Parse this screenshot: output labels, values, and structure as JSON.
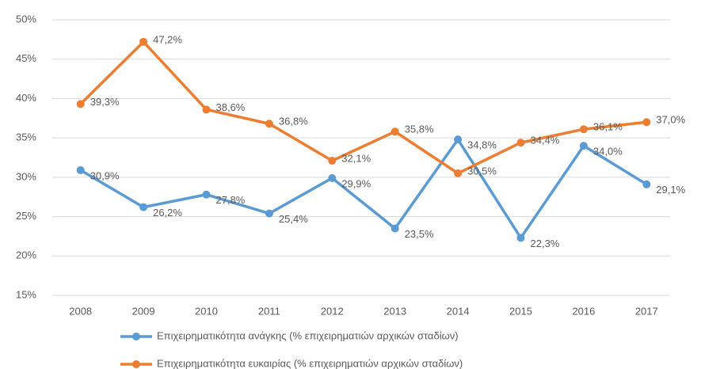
{
  "chart_data": {
    "type": "line",
    "categories": [
      "2008",
      "2009",
      "2010",
      "2011",
      "2012",
      "2013",
      "2014",
      "2015",
      "2016",
      "2017"
    ],
    "series": [
      {
        "name": "Επιχειρηματικότητα ανάγκης (% επιχειρηματιών αρχικών σταδίων)",
        "color": "#5b9bd5",
        "values": [
          30.9,
          26.2,
          27.8,
          25.4,
          29.9,
          23.5,
          34.8,
          22.3,
          34.0,
          29.1
        ],
        "value_labels": [
          "30,9%",
          "26,2%",
          "27,8%",
          "25,4%",
          "29,9%",
          "23,5%",
          "34,8%",
          "22,3%",
          "34,0%",
          "29,1%"
        ]
      },
      {
        "name": "Επιχειρηματικότητα ευκαιρίας (% επιχειρηματιών αρχικών σταδίων)",
        "color": "#ed7d31",
        "values": [
          39.3,
          47.2,
          38.6,
          36.8,
          32.1,
          35.8,
          30.5,
          34.4,
          36.1,
          37.0
        ],
        "value_labels": [
          "39,3%",
          "47,2%",
          "38,6%",
          "36,8%",
          "32,1%",
          "35,8%",
          "30,5%",
          "34,4%",
          "36,1%",
          "37,0%"
        ]
      }
    ],
    "ylim": [
      15,
      50
    ],
    "yticks": [
      {
        "value": 15,
        "label": "15%"
      },
      {
        "value": 20,
        "label": "20%"
      },
      {
        "value": 25,
        "label": "25%"
      },
      {
        "value": 30,
        "label": "30%"
      },
      {
        "value": 35,
        "label": "35%"
      },
      {
        "value": 40,
        "label": "40%"
      },
      {
        "value": 45,
        "label": "45%"
      },
      {
        "value": 50,
        "label": "50%"
      }
    ],
    "grid": true,
    "legend": "bottom"
  }
}
